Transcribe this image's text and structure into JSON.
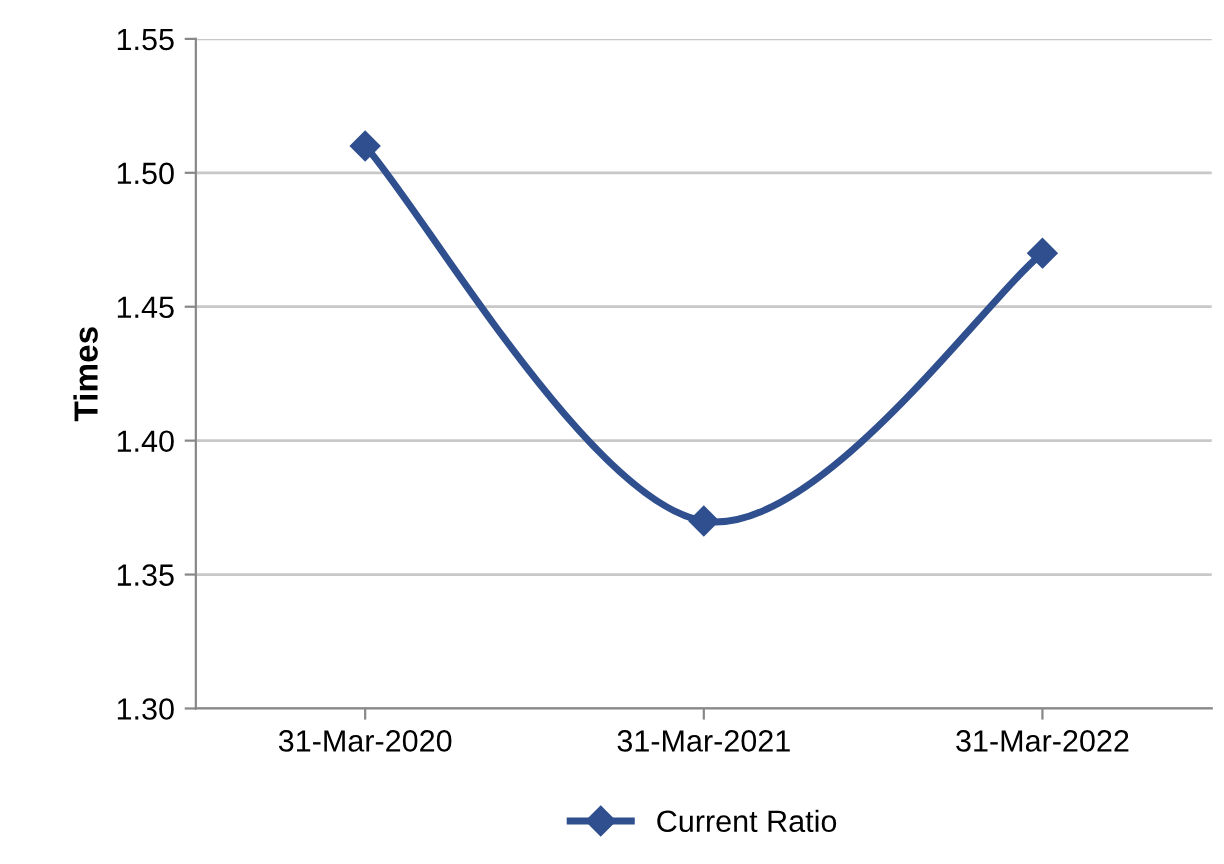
{
  "chart_data": {
    "type": "line",
    "ylabel": "Times",
    "categories": [
      "31-Mar-2020",
      "31-Mar-2021",
      "31-Mar-2022"
    ],
    "series": [
      {
        "name": "Current Ratio",
        "color": "#2f4f8f",
        "values": [
          1.51,
          1.37,
          1.47
        ]
      }
    ],
    "ylim": [
      1.3,
      1.55
    ],
    "yticks": [
      {
        "value": 1.3,
        "label": "1.30"
      },
      1.35,
      {
        "value": 1.4,
        "label": "1.40"
      },
      1.45,
      {
        "value": 1.5,
        "label": "1.50"
      },
      1.55
    ],
    "grid": "y",
    "legend": "bottom",
    "marker": "diamond",
    "line_style": "solid"
  }
}
